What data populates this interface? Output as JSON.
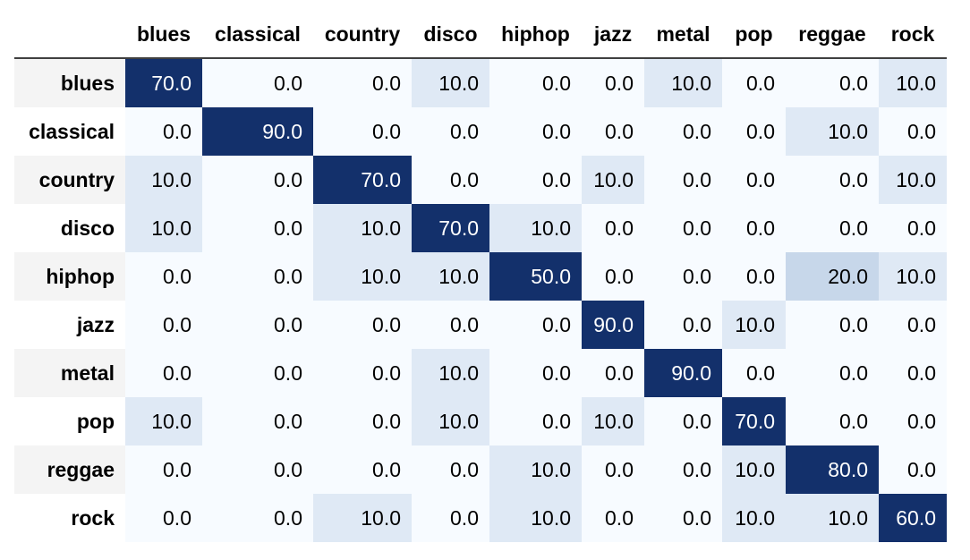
{
  "chart_data": {
    "type": "heatmap",
    "x_labels": [
      "blues",
      "classical",
      "country",
      "disco",
      "hiphop",
      "jazz",
      "metal",
      "pop",
      "reggae",
      "rock"
    ],
    "y_labels": [
      "blues",
      "classical",
      "country",
      "disco",
      "hiphop",
      "jazz",
      "metal",
      "pop",
      "reggae",
      "rock"
    ],
    "values": [
      [
        70.0,
        0.0,
        0.0,
        10.0,
        0.0,
        0.0,
        10.0,
        0.0,
        0.0,
        10.0
      ],
      [
        0.0,
        90.0,
        0.0,
        0.0,
        0.0,
        0.0,
        0.0,
        0.0,
        10.0,
        0.0
      ],
      [
        10.0,
        0.0,
        70.0,
        0.0,
        0.0,
        10.0,
        0.0,
        0.0,
        0.0,
        10.0
      ],
      [
        10.0,
        0.0,
        10.0,
        70.0,
        10.0,
        0.0,
        0.0,
        0.0,
        0.0,
        0.0
      ],
      [
        0.0,
        0.0,
        10.0,
        10.0,
        50.0,
        0.0,
        0.0,
        0.0,
        20.0,
        10.0
      ],
      [
        0.0,
        0.0,
        0.0,
        0.0,
        0.0,
        90.0,
        0.0,
        10.0,
        0.0,
        0.0
      ],
      [
        0.0,
        0.0,
        0.0,
        10.0,
        0.0,
        0.0,
        90.0,
        0.0,
        0.0,
        0.0
      ],
      [
        10.0,
        0.0,
        0.0,
        10.0,
        0.0,
        10.0,
        0.0,
        70.0,
        0.0,
        0.0
      ],
      [
        0.0,
        0.0,
        0.0,
        0.0,
        10.0,
        0.0,
        0.0,
        10.0,
        80.0,
        0.0
      ],
      [
        0.0,
        0.0,
        10.0,
        0.0,
        10.0,
        0.0,
        0.0,
        10.0,
        10.0,
        60.0
      ]
    ],
    "value_format": "0.0",
    "colors": {
      "zero": "#f7fbff",
      "ten": "#dfe9f5",
      "twenty": "#c7d7ea",
      "high": "#13306b",
      "text_dark": "#000000",
      "text_light": "#ffffff"
    }
  }
}
